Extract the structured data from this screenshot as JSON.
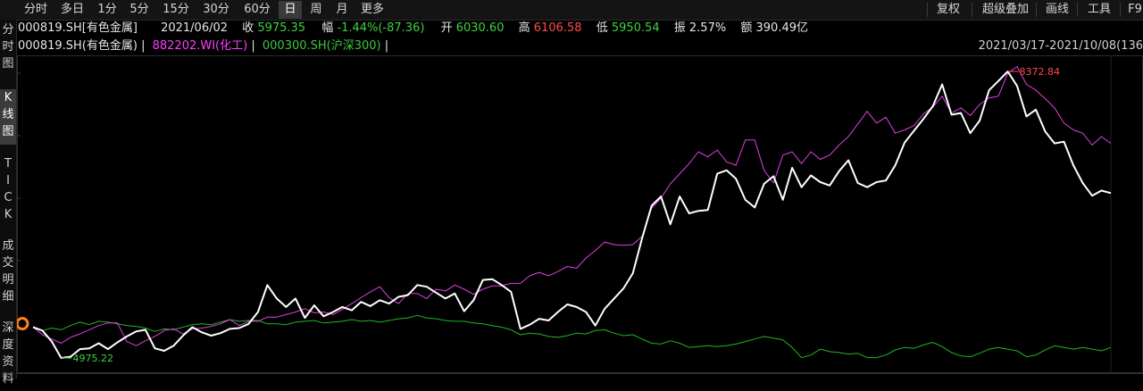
{
  "toolbar": {
    "periods": [
      "分时",
      "多日",
      "1分",
      "5分",
      "15分",
      "30分",
      "60分",
      "日",
      "周",
      "月",
      "更多"
    ],
    "active_period": "日",
    "right_buttons": [
      "复权",
      "超级叠加",
      "画线",
      "工具",
      "F9"
    ]
  },
  "sidebar": [
    {
      "label": "分\n时\n图"
    },
    {
      "label": "K\n线\n图"
    },
    {
      "label": "T\nI\nC\nK"
    },
    {
      "label": "成\n交\n明\n细"
    },
    {
      "label": "深\n度\n资\n料"
    }
  ],
  "info": {
    "code": "000819.SH[有色金属]",
    "date": "2021/06/02",
    "close_label": "收",
    "close": "5975.35",
    "change_label": "幅",
    "change": "-1.44%(-87.36)",
    "open_label": "开",
    "open": "6030.60",
    "high_label": "高",
    "high": "6106.58",
    "low_label": "低",
    "low": "5950.54",
    "amp_label": "振",
    "amp": "2.57%",
    "amount_label": "额",
    "amount": "390.49亿"
  },
  "legend": {
    "main": "000819.SH(有色金属)",
    "sep": "|",
    "s2": "882202.WI(化工)",
    "s3": "000300.SH(沪深300)"
  },
  "range": "2021/03/17-2021/10/08(136",
  "colors": {
    "main": "#ffffff",
    "chem": "#e040e0",
    "hs300": "#22b522",
    "max_label": "#ff4b4b",
    "min_label": "#3fd13f",
    "marker": "#ff7f1a"
  },
  "chart_data": {
    "type": "line",
    "x_range": [
      "2021/03/17",
      "2021/10/08"
    ],
    "max_label": "8372.84",
    "min_label": "4975.22",
    "series": [
      {
        "name": "000819.SH(有色金属)",
        "values": [
          5340,
          5300,
          5170,
          4975,
          4990,
          5080,
          5090,
          5150,
          5080,
          5160,
          5230,
          5290,
          5310,
          5090,
          5060,
          5120,
          5240,
          5340,
          5280,
          5240,
          5270,
          5320,
          5330,
          5380,
          5520,
          5840,
          5680,
          5580,
          5680,
          5450,
          5600,
          5470,
          5520,
          5580,
          5540,
          5640,
          5590,
          5660,
          5620,
          5700,
          5720,
          5840,
          5820,
          5750,
          5680,
          5740,
          5530,
          5660,
          5900,
          5910,
          5840,
          5760,
          5320,
          5370,
          5440,
          5420,
          5520,
          5610,
          5580,
          5520,
          5360,
          5560,
          5680,
          5800,
          5980,
          6400,
          6780,
          6890,
          6560,
          6890,
          6690,
          6720,
          6730,
          7160,
          7200,
          7100,
          6850,
          6760,
          7040,
          7130,
          6850,
          7230,
          7000,
          7140,
          7060,
          7020,
          7190,
          7320,
          7050,
          7000,
          7060,
          7080,
          7260,
          7530,
          7670,
          7810,
          7960,
          8220,
          7860,
          7880,
          7640,
          7790,
          8150,
          8260,
          8373,
          8200,
          7840,
          7920,
          7660,
          7520,
          7540,
          7260,
          7050,
          6900,
          6960,
          6930
        ]
      },
      {
        "name": "882202.WI(化工)",
        "values": [
          5340,
          5250,
          5200,
          5150,
          5220,
          5260,
          5310,
          5360,
          5390,
          5390,
          5170,
          5120,
          5180,
          5230,
          5300,
          5320,
          5260,
          5320,
          5330,
          5350,
          5380,
          5430,
          5360,
          5410,
          5410,
          5460,
          5460,
          5490,
          5520,
          5560,
          5510,
          5520,
          5490,
          5550,
          5620,
          5690,
          5760,
          5820,
          5690,
          5620,
          5740,
          5740,
          5680,
          5790,
          5770,
          5840,
          5790,
          5730,
          5790,
          5830,
          5830,
          5860,
          5860,
          5950,
          5990,
          5950,
          6000,
          6060,
          6040,
          6160,
          6250,
          6350,
          6320,
          6310,
          6320,
          6420,
          6750,
          6870,
          7040,
          7160,
          7280,
          7420,
          7360,
          7440,
          7300,
          7260,
          7560,
          7560,
          7200,
          7050,
          7380,
          7420,
          7280,
          7420,
          7330,
          7380,
          7500,
          7600,
          7750,
          7900,
          7760,
          7830,
          7640,
          7680,
          7730,
          7870,
          7950,
          8080,
          7880,
          7940,
          7850,
          7980,
          8060,
          8080,
          8350,
          8430,
          8220,
          8150,
          8050,
          7940,
          7760,
          7680,
          7640,
          7500,
          7600,
          7520
        ]
      },
      {
        "name": "000300.SH(沪深300)",
        "values": [
          5340,
          5300,
          5330,
          5310,
          5360,
          5400,
          5370,
          5410,
          5400,
          5380,
          5360,
          5350,
          5330,
          5290,
          5320,
          5310,
          5340,
          5370,
          5380,
          5370,
          5400,
          5430,
          5410,
          5420,
          5420,
          5380,
          5380,
          5370,
          5400,
          5410,
          5420,
          5390,
          5400,
          5410,
          5430,
          5410,
          5420,
          5400,
          5420,
          5440,
          5450,
          5480,
          5450,
          5440,
          5420,
          5410,
          5410,
          5390,
          5380,
          5360,
          5340,
          5310,
          5250,
          5270,
          5260,
          5230,
          5220,
          5240,
          5270,
          5260,
          5300,
          5310,
          5270,
          5240,
          5250,
          5200,
          5150,
          5140,
          5180,
          5150,
          5100,
          5110,
          5120,
          5110,
          5120,
          5140,
          5170,
          5200,
          5230,
          5210,
          5190,
          5100,
          4980,
          5010,
          5080,
          5050,
          5040,
          5020,
          5030,
          4980,
          4980,
          5010,
          5070,
          5100,
          5090,
          5130,
          5160,
          5110,
          5040,
          5000,
          4990,
          5030,
          5080,
          5100,
          5080,
          5060,
          4990,
          5010,
          5070,
          5120,
          5100,
          5080,
          5100,
          5080,
          5060,
          5100
        ]
      }
    ]
  }
}
